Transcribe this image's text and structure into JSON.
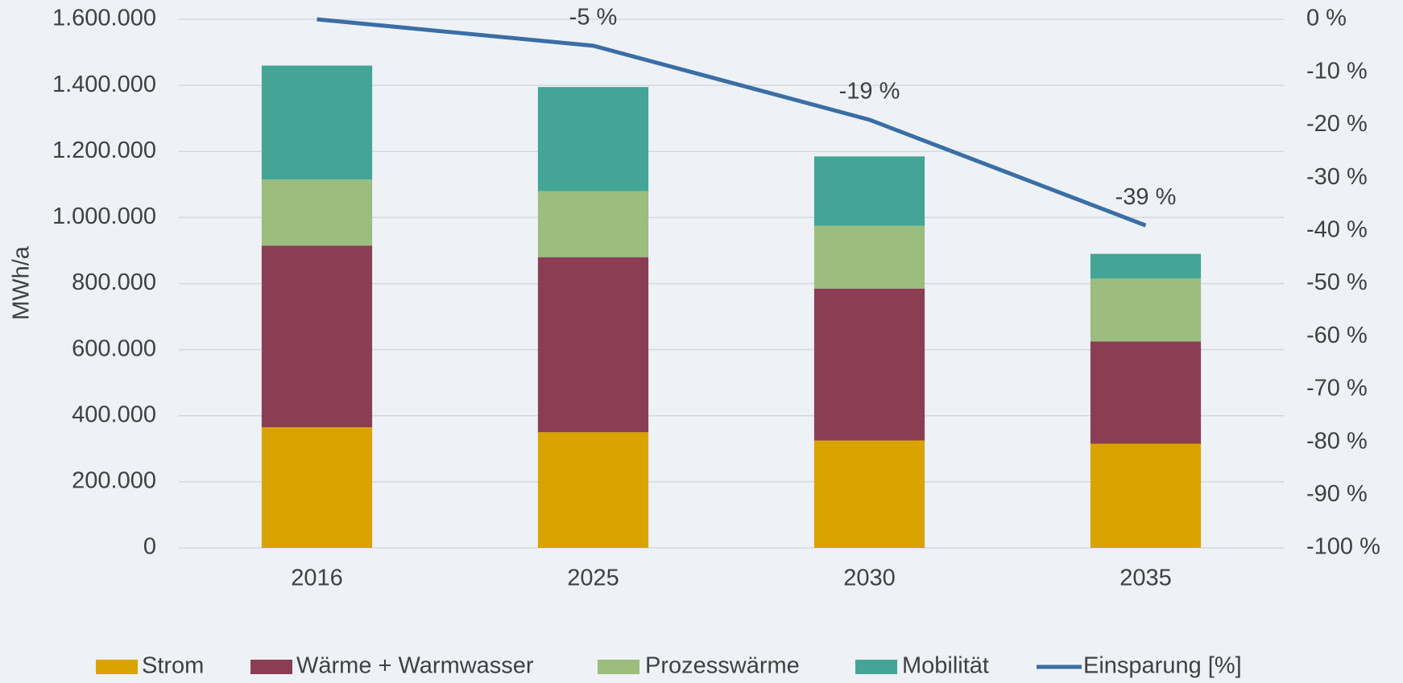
{
  "chart_data": {
    "type": "bar",
    "categories": [
      "2016",
      "2025",
      "2030",
      "2035"
    ],
    "y_label": "MWh/a",
    "ylim": [
      0,
      1600000
    ],
    "yticks": [
      0,
      {
        "value": 200000,
        "label": "200.000"
      },
      {
        "value": 400000,
        "label": "400.000"
      },
      {
        "value": 600000,
        "label": "600.000"
      },
      {
        "value": 800000,
        "label": "800.000"
      },
      {
        "value": 1000000,
        "label": "1.000.000"
      },
      {
        "value": 1200000,
        "label": "1.200.000"
      },
      {
        "value": 1400000,
        "label": "1.400.000"
      },
      {
        "value": 1600000,
        "label": "1.600.000"
      }
    ],
    "y2lim": [
      -100,
      0
    ],
    "y2ticks": [
      {
        "value": 0,
        "label": "0 %"
      },
      {
        "value": -10,
        "label": "-10 %"
      },
      {
        "value": -20,
        "label": "-20 %"
      },
      {
        "value": -30,
        "label": "-30 %"
      },
      {
        "value": -40,
        "label": "-40 %"
      },
      {
        "value": -50,
        "label": "-50 %"
      },
      {
        "value": -60,
        "label": "-60 %"
      },
      {
        "value": -70,
        "label": "-70 %"
      },
      {
        "value": -80,
        "label": "-80 %"
      },
      {
        "value": -90,
        "label": "-90 %"
      },
      {
        "value": -100,
        "label": "-100 %"
      }
    ],
    "grid": true,
    "legend": "bottom",
    "series": [
      {
        "name": "Strom",
        "color": "#d9a300",
        "values": [
          365000,
          350000,
          325000,
          315000
        ]
      },
      {
        "name": "Wärme + Warmwasser",
        "color": "#8b3e53",
        "values": [
          550000,
          530000,
          460000,
          310000
        ]
      },
      {
        "name": "Prozesswärme",
        "color": "#9bbd7e",
        "values": [
          200000,
          200000,
          190000,
          190000
        ]
      },
      {
        "name": "Mobilität",
        "color": "#44a597",
        "values": [
          345000,
          315000,
          210000,
          75000
        ]
      },
      {
        "name": "Einsparung [%]",
        "type": "line",
        "axis": "y2",
        "color": "#3a6ea5",
        "values": [
          0,
          -5,
          -19,
          -39
        ],
        "value_labels": [
          null,
          "-5 %",
          "-19 %",
          "-39 %"
        ]
      }
    ]
  }
}
